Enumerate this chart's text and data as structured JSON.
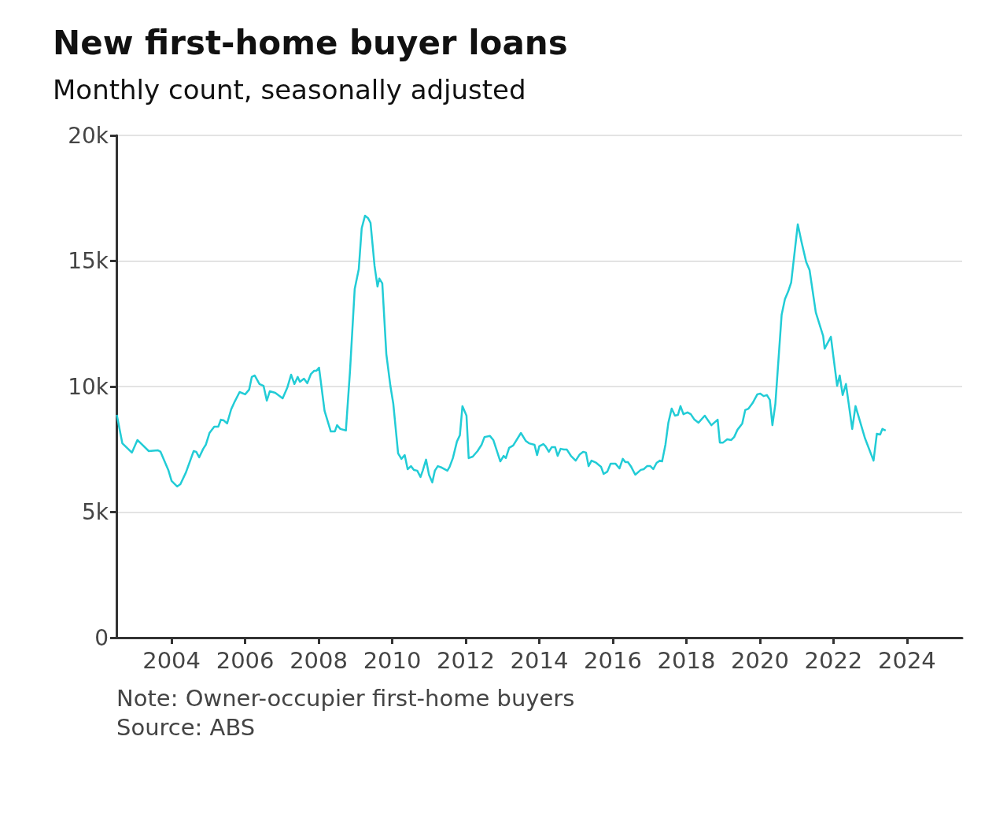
{
  "chart_data": {
    "type": "line",
    "title": "New first-home buyer loans",
    "subtitle": "Monthly count, seasonally adjusted",
    "annotations": [
      "Note: Owner-occupier first-home buyers",
      "Source: ABS"
    ],
    "xlim": [
      2002.5,
      2025.5
    ],
    "xticks": [
      2004,
      2006,
      2008,
      2010,
      2012,
      2014,
      2016,
      2018,
      2020,
      2022,
      2024
    ],
    "ylim": [
      0,
      20000
    ],
    "yticks": [
      0,
      {
        "value": 5000,
        "label": "5k"
      },
      {
        "value": 10000,
        "label": "10k"
      },
      {
        "value": 15000,
        "label": "15k"
      },
      {
        "value": 20000,
        "label": "20k"
      }
    ],
    "grid": "y",
    "marker": "none",
    "line_style": "solid",
    "series": [
      {
        "color": "#22ccd6",
        "x": [
          2002.51,
          2002.66,
          2002.92,
          2003.07,
          2003.38,
          2003.63,
          2003.7,
          2003.91,
          2004.0,
          2004.15,
          2004.24,
          2004.39,
          2004.6,
          2004.67,
          2004.75,
          2004.86,
          2004.93,
          2005.03,
          2005.16,
          2005.27,
          2005.34,
          2005.42,
          2005.51,
          2005.62,
          2005.72,
          2005.85,
          2006.0,
          2006.11,
          2006.18,
          2006.26,
          2006.39,
          2006.5,
          2006.59,
          2006.67,
          2006.82,
          2007.02,
          2007.15,
          2007.25,
          2007.34,
          2007.43,
          2007.49,
          2007.6,
          2007.69,
          2007.79,
          2007.88,
          2007.94,
          2008.01,
          2008.16,
          2008.33,
          2008.44,
          2008.5,
          2008.59,
          2008.74,
          2008.85,
          2008.98,
          2009.09,
          2009.17,
          2009.26,
          2009.34,
          2009.41,
          2009.52,
          2009.6,
          2009.65,
          2009.73,
          2009.84,
          2009.95,
          2010.03,
          2010.16,
          2010.25,
          2010.34,
          2010.42,
          2010.51,
          2010.59,
          2010.68,
          2010.77,
          2010.83,
          2010.92,
          2011.0,
          2011.09,
          2011.16,
          2011.24,
          2011.35,
          2011.5,
          2011.56,
          2011.65,
          2011.76,
          2011.84,
          2011.91,
          2012.02,
          2012.08,
          2012.19,
          2012.32,
          2012.43,
          2012.51,
          2012.66,
          2012.75,
          2012.94,
          2013.03,
          2013.09,
          2013.18,
          2013.29,
          2013.5,
          2013.63,
          2013.72,
          2013.87,
          2013.94,
          2014.0,
          2014.11,
          2014.17,
          2014.26,
          2014.34,
          2014.43,
          2014.5,
          2014.58,
          2014.67,
          2014.75,
          2014.86,
          2014.99,
          2015.1,
          2015.19,
          2015.27,
          2015.34,
          2015.42,
          2015.55,
          2015.68,
          2015.75,
          2015.85,
          2015.94,
          2016.07,
          2016.18,
          2016.27,
          2016.34,
          2016.41,
          2016.5,
          2016.61,
          2016.76,
          2016.84,
          2016.93,
          2017.02,
          2017.1,
          2017.19,
          2017.28,
          2017.34,
          2017.43,
          2017.51,
          2017.6,
          2017.69,
          2017.77,
          2017.84,
          2017.92,
          2018.03,
          2018.12,
          2018.22,
          2018.33,
          2018.5,
          2018.68,
          2018.85,
          2018.91,
          2019.0,
          2019.11,
          2019.22,
          2019.3,
          2019.39,
          2019.52,
          2019.6,
          2019.69,
          2019.8,
          2019.93,
          2020.01,
          2020.1,
          2020.19,
          2020.27,
          2020.34,
          2020.42,
          2020.59,
          2020.68,
          2020.77,
          2020.85,
          2021.03,
          2021.13,
          2021.26,
          2021.35,
          2021.52,
          2021.72,
          2021.76,
          2021.93,
          2022.1,
          2022.17,
          2022.25,
          2022.34,
          2022.51,
          2022.6,
          2022.86,
          2023.09,
          2023.18,
          2023.27,
          2023.33,
          2023.42
        ],
        "values": [
          8870,
          7740,
          7370,
          7870,
          7430,
          7460,
          7400,
          6680,
          6240,
          6020,
          6110,
          6580,
          7430,
          7400,
          7180,
          7520,
          7680,
          8150,
          8400,
          8400,
          8680,
          8650,
          8530,
          9090,
          9410,
          9780,
          9690,
          9880,
          10380,
          10440,
          10100,
          10030,
          9440,
          9810,
          9750,
          9530,
          9970,
          10470,
          10100,
          10380,
          10190,
          10310,
          10130,
          10500,
          10630,
          10630,
          10750,
          9030,
          8210,
          8210,
          8460,
          8310,
          8250,
          10570,
          13890,
          14670,
          16300,
          16800,
          16710,
          16520,
          14800,
          13980,
          14300,
          14110,
          11290,
          10030,
          9310,
          7340,
          7120,
          7270,
          6710,
          6830,
          6680,
          6650,
          6400,
          6650,
          7090,
          6490,
          6180,
          6650,
          6830,
          6770,
          6650,
          6800,
          7150,
          7810,
          8060,
          9220,
          8840,
          7150,
          7210,
          7430,
          7680,
          7990,
          8030,
          7870,
          7020,
          7240,
          7150,
          7560,
          7650,
          8150,
          7840,
          7740,
          7680,
          7270,
          7620,
          7710,
          7620,
          7400,
          7590,
          7590,
          7240,
          7520,
          7490,
          7490,
          7240,
          7050,
          7300,
          7400,
          7370,
          6830,
          7050,
          6960,
          6800,
          6520,
          6610,
          6930,
          6930,
          6740,
          7120,
          6990,
          6990,
          6800,
          6490,
          6680,
          6710,
          6830,
          6830,
          6710,
          6960,
          7050,
          7020,
          7680,
          8560,
          9120,
          8840,
          8870,
          9220,
          8900,
          8970,
          8900,
          8680,
          8560,
          8840,
          8460,
          8680,
          7770,
          7770,
          7900,
          7870,
          7990,
          8280,
          8530,
          9060,
          9120,
          9340,
          9690,
          9720,
          9620,
          9660,
          9470,
          8460,
          9310,
          12850,
          13480,
          13790,
          14140,
          16460,
          15770,
          14950,
          14640,
          12950,
          12010,
          11510,
          11980,
          10030,
          10440,
          9660,
          10100,
          8310,
          9220,
          7930,
          7050,
          8120,
          8090,
          8310,
          8250
        ]
      }
    ]
  }
}
